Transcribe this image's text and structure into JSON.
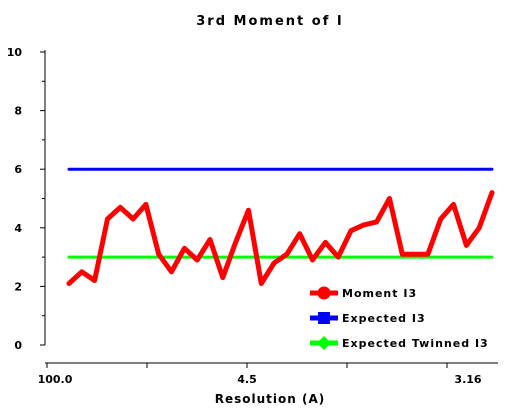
{
  "chart_data": {
    "type": "line",
    "title": "3rd Moment of I",
    "xlabel": "Resolution (A)",
    "ylabel": "",
    "ylim": [
      0,
      10
    ],
    "yticks": [
      0,
      2,
      4,
      6,
      8,
      10
    ],
    "xtick_labels": [
      "100.0",
      "4.5",
      "3.16"
    ],
    "grid": false,
    "legend_position": "bottom-right",
    "series": [
      {
        "name": "Moment I3",
        "color": "#ff0000",
        "marker": "circle",
        "values": [
          2.1,
          2.5,
          2.2,
          4.3,
          4.7,
          4.3,
          4.8,
          3.1,
          2.5,
          3.3,
          2.9,
          3.6,
          2.3,
          3.5,
          4.6,
          2.1,
          2.8,
          3.1,
          3.8,
          2.9,
          3.5,
          3.0,
          3.9,
          4.1,
          4.2,
          5.0,
          3.1,
          3.1,
          3.1,
          4.3,
          4.8,
          3.4,
          4.0,
          5.2
        ]
      },
      {
        "name": "Expected I3",
        "color": "#0000ff",
        "marker": "square",
        "values": [
          6.0,
          6.0
        ]
      },
      {
        "name": "Expected Twinned I3",
        "color": "#00ff00",
        "marker": "diamond",
        "values": [
          3.0,
          3.0
        ]
      }
    ]
  }
}
